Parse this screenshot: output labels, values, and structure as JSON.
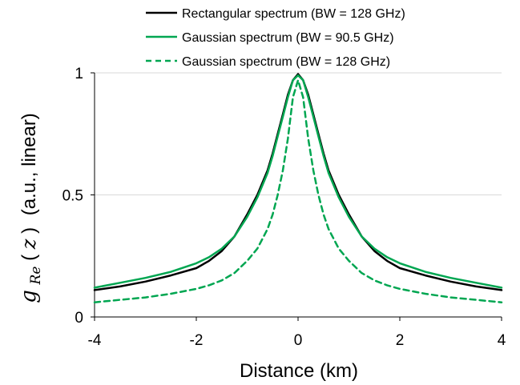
{
  "chart_data": {
    "type": "line",
    "xlabel": "Distance (km)",
    "ylabel": {
      "symbol": "g",
      "subscript": "Re",
      "argument": "z",
      "suffix": "(a.u., linear)"
    },
    "xlim": [
      -4,
      4
    ],
    "ylim": [
      0,
      1
    ],
    "xticks": [
      "-4",
      "-2",
      "0",
      "2",
      "4"
    ],
    "yticks": [
      "0",
      "0.5",
      "1"
    ],
    "grid": "horizontal",
    "legend": "top",
    "series": [
      {
        "name": "Rectangular spectrum (BW = 128 GHz)",
        "color": "#000000",
        "dash": "solid",
        "x": [
          -4,
          -3.5,
          -3,
          -2.5,
          -2,
          -1.75,
          -1.5,
          -1.25,
          -1,
          -0.8,
          -0.6,
          -0.5,
          -0.4,
          -0.3,
          -0.2,
          -0.1,
          0,
          0.1,
          0.2,
          0.3,
          0.4,
          0.5,
          0.6,
          0.8,
          1,
          1.25,
          1.5,
          1.75,
          2,
          2.5,
          3,
          3.5,
          4
        ],
        "y": [
          0.11,
          0.125,
          0.145,
          0.17,
          0.2,
          0.23,
          0.27,
          0.33,
          0.42,
          0.5,
          0.6,
          0.67,
          0.75,
          0.83,
          0.91,
          0.97,
          0.995,
          0.97,
          0.91,
          0.83,
          0.75,
          0.67,
          0.6,
          0.5,
          0.42,
          0.33,
          0.27,
          0.23,
          0.2,
          0.17,
          0.145,
          0.125,
          0.11
        ]
      },
      {
        "name": "Gaussian spectrum (BW = 90.5 GHz)",
        "color": "#00a651",
        "dash": "solid",
        "x": [
          -4,
          -3.5,
          -3,
          -2.5,
          -2,
          -1.75,
          -1.5,
          -1.25,
          -1,
          -0.8,
          -0.6,
          -0.5,
          -0.4,
          -0.3,
          -0.2,
          -0.1,
          0,
          0.1,
          0.2,
          0.3,
          0.4,
          0.5,
          0.6,
          0.8,
          1,
          1.25,
          1.5,
          1.75,
          2,
          2.5,
          3,
          3.5,
          4
        ],
        "y": [
          0.12,
          0.14,
          0.16,
          0.185,
          0.22,
          0.245,
          0.28,
          0.33,
          0.41,
          0.49,
          0.59,
          0.66,
          0.74,
          0.82,
          0.9,
          0.97,
          0.99,
          0.97,
          0.9,
          0.82,
          0.74,
          0.66,
          0.59,
          0.49,
          0.41,
          0.33,
          0.28,
          0.245,
          0.22,
          0.185,
          0.16,
          0.14,
          0.12
        ]
      },
      {
        "name": "Gaussian spectrum (BW = 128 GHz)",
        "color": "#00a651",
        "dash": "dashed",
        "x": [
          -4,
          -3.5,
          -3,
          -2.5,
          -2,
          -1.75,
          -1.5,
          -1.25,
          -1,
          -0.8,
          -0.6,
          -0.5,
          -0.4,
          -0.3,
          -0.2,
          -0.1,
          0,
          0.1,
          0.2,
          0.3,
          0.4,
          0.5,
          0.6,
          0.8,
          1,
          1.25,
          1.5,
          1.75,
          2,
          2.5,
          3,
          3.5,
          4
        ],
        "y": [
          0.06,
          0.07,
          0.08,
          0.095,
          0.115,
          0.13,
          0.15,
          0.18,
          0.23,
          0.28,
          0.36,
          0.42,
          0.5,
          0.6,
          0.73,
          0.9,
          0.97,
          0.9,
          0.73,
          0.6,
          0.5,
          0.42,
          0.36,
          0.28,
          0.23,
          0.18,
          0.15,
          0.13,
          0.115,
          0.095,
          0.08,
          0.07,
          0.06
        ]
      }
    ]
  }
}
